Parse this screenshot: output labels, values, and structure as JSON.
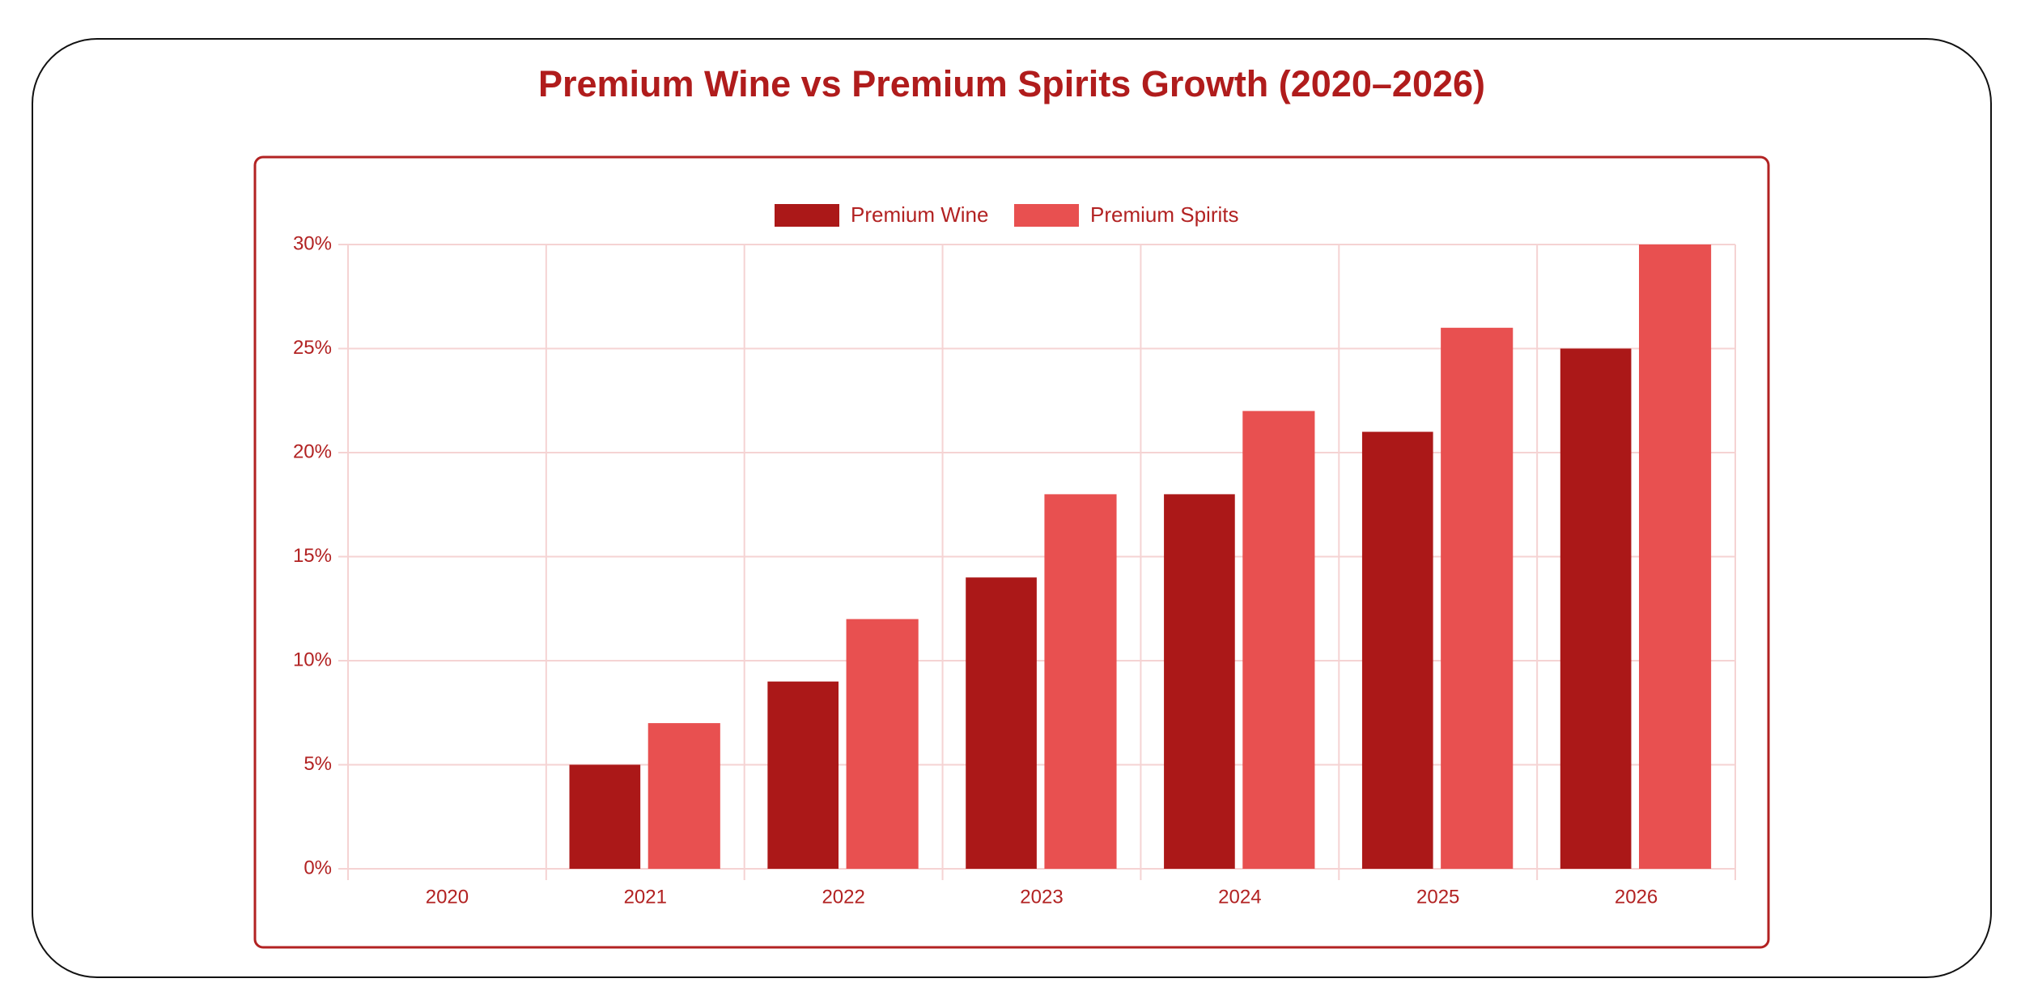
{
  "chart_data": {
    "type": "bar",
    "title": "Premium Wine vs Premium Spirits Growth (2020–2026)",
    "categories": [
      "2020",
      "2021",
      "2022",
      "2023",
      "2024",
      "2025",
      "2026"
    ],
    "series": [
      {
        "name": "Premium Wine",
        "color": "#ab1818",
        "values": [
          0,
          5,
          9,
          14,
          18,
          21,
          25
        ]
      },
      {
        "name": "Premium Spirits",
        "color": "#e85050",
        "values": [
          0,
          7,
          12,
          18,
          22,
          26,
          30
        ]
      }
    ],
    "ylim": [
      0,
      30
    ],
    "yticks": [
      {
        "value": 0,
        "label": "0%"
      },
      {
        "value": 5,
        "label": "5%"
      },
      {
        "value": 10,
        "label": "10%"
      },
      {
        "value": 15,
        "label": "15%"
      },
      {
        "value": 20,
        "label": "20%"
      },
      {
        "value": 25,
        "label": "25%"
      },
      {
        "value": 30,
        "label": "30%"
      }
    ],
    "grid": true,
    "legend": "top"
  }
}
